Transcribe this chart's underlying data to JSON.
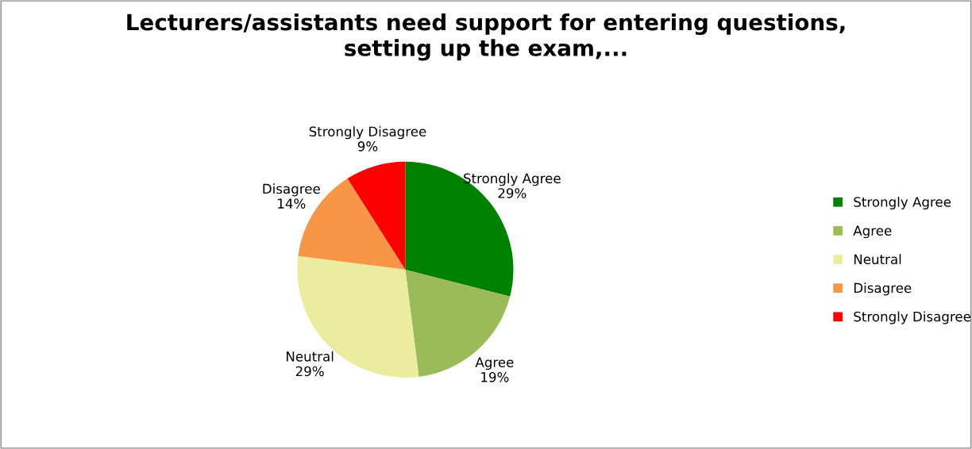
{
  "chart_data": {
    "type": "pie",
    "title": "Lecturers/assistants need support for entering questions,\nsetting up the exam,...",
    "categories": [
      "Strongly Agree",
      "Agree",
      "Neutral",
      "Disagree",
      "Strongly Disagree"
    ],
    "values": [
      29,
      19,
      29,
      14,
      9
    ],
    "value_labels": [
      "29%",
      "19%",
      "29%",
      "14%",
      "9%"
    ],
    "colors": [
      "#008000",
      "#9bbb59",
      "#ebeca0",
      "#f79646",
      "#ff0000"
    ],
    "legend": "right"
  }
}
